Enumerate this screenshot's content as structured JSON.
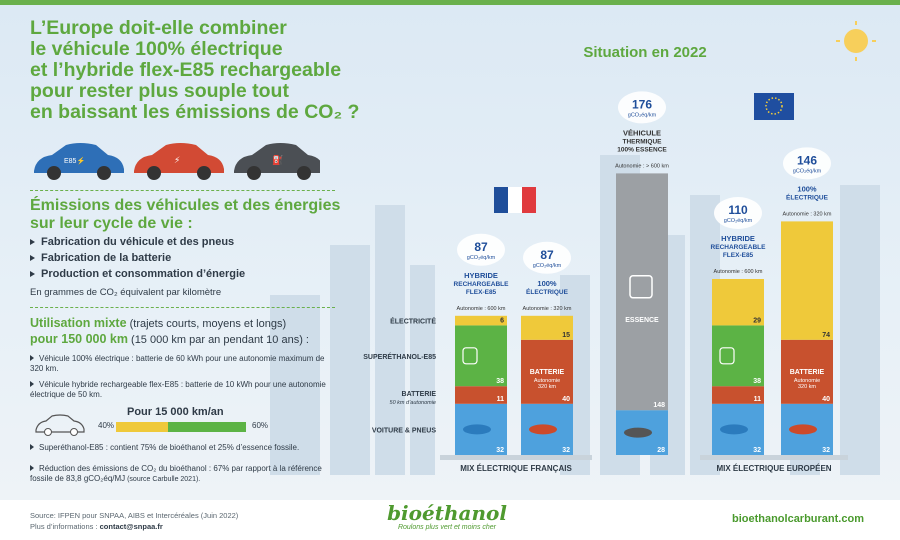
{
  "title_lines": [
    "L’Europe doit-elle combiner",
    "le véhicule 100% électrique",
    "et l’hybride flex-E85 rechargeable",
    "pour rester plus souple tout",
    "en baissant les émissions de CO₂ ?"
  ],
  "car_badges": [
    "E85⚡",
    "⚡",
    "⛽"
  ],
  "section1": {
    "title_lines": [
      "Émissions des véhicules et des énergies",
      "sur leur cycle de vie :"
    ],
    "bullets": [
      "Fabrication du véhicule et des pneus",
      "Fabrication de la batterie",
      "Production et consommation d’énergie"
    ],
    "unit_note": "En grammes de CO₂ équivalent par kilomètre"
  },
  "section2": {
    "title_main": "Utilisation mixte",
    "title_paren1": " (trajets courts, moyens et longs)",
    "title_main2": "pour 150 000 km",
    "title_paren2": " (15 000 km par an pendant 10 ans) :",
    "notes": [
      "Véhicule 100% électrique : batterie de 60 kWh pour une autonomie maximum de 320 km.",
      "Véhicule hybride rechargeable flex-E85 : batterie de 10 kWh pour une autonomie électrique de 50 km."
    ],
    "km_title": "Pour 15 000 km/an",
    "km_left": "40%",
    "km_right": "60%",
    "km_split": [
      40,
      60
    ],
    "notes2": [
      "Superéthanol-E85 : contient 75% de bioéthanol et 25% d’essence fossile.",
      "Réduction des émissions de CO₂ du bioéthanol : 67% par rapport à la référence fossile de 83,8 gCO₂éq/MJ"
    ],
    "notes2_source": " (source Carbulle 2021)."
  },
  "chart_data": {
    "type": "bar",
    "stacked": true,
    "title": "Situation en 2022",
    "unit": "gCO₂éq/km",
    "components": [
      "VOITURE & PNEUS",
      "BATTERIE",
      "SUPERÉTHANOL-E85",
      "ÉLECTRICITÉ"
    ],
    "component_labels": {
      "electricite": "ÉLECTRICITÉ",
      "superethanol": "SUPERÉTHANOL-E85",
      "batterie": "BATTERIE",
      "batterie_sub": "50 km d’autonomie",
      "voiture": "VOITURE & PNEUS"
    },
    "groups": [
      {
        "label": "MIX ÉLECTRIQUE FRANÇAIS",
        "flag": "France"
      },
      {
        "label": "MIX ÉLECTRIQUE EUROPÉEN",
        "flag": "EU"
      }
    ],
    "bars": [
      {
        "group": 0,
        "total": "87",
        "name_lines": [
          "HYBRIDE",
          "RECHARGEABLE",
          "FLEX-E85"
        ],
        "sub": "Autonomie : 600 km",
        "values": {
          "voiture": 32,
          "batterie": 11,
          "superethanol": 38,
          "electricite": 6
        },
        "color": "#2b7bbd"
      },
      {
        "group": 0,
        "total": "87",
        "name_lines": [
          "100%",
          "ÉLECTRIQUE"
        ],
        "sub": "Autonomie : 320 km",
        "values": {
          "voiture": 32,
          "batterie": 40,
          "electricite": 15
        },
        "color": "#cc4a2a"
      },
      {
        "group": -1,
        "total": "176",
        "name_lines": [
          "VÉHICULE",
          "THERMIQUE",
          "100% ESSENCE"
        ],
        "sub": "Autonomie : > 600 km",
        "values": {
          "voiture": 28,
          "essence": 148
        },
        "essence_label": "ESSENCE",
        "color": "#555"
      },
      {
        "group": 1,
        "total": "110",
        "name_lines": [
          "HYBRIDE",
          "RECHARGEABLE",
          "FLEX-E85"
        ],
        "sub": "Autonomie : 600 km",
        "values": {
          "voiture": 32,
          "batterie": 11,
          "superethanol": 38,
          "electricite": 29
        },
        "color": "#2b7bbd"
      },
      {
        "group": 1,
        "total": "146",
        "name_lines": [
          "100%",
          "ÉLECTRIQUE"
        ],
        "sub": "Autonomie : 320 km",
        "values": {
          "voiture": 32,
          "batterie": 40,
          "electricite": 74
        },
        "color": "#cc4a2a"
      }
    ],
    "segment_inner_labels": {
      "batterie": "BATTERIE",
      "batterie_sub1": "Autonomie",
      "batterie_sub2": "320 km"
    },
    "colors": {
      "voiture": "#4ea1dd",
      "batterie": "#c8512e",
      "superethanol": "#5cb345",
      "electricite": "#efc93a",
      "essence": "#9ca0a4"
    }
  },
  "footer": {
    "source_line1": "Source: IFPEN pour SNPAA, AIBS et Intercéréales (Juin 2022)",
    "source_line2_label": "Plus d’informations : ",
    "source_line2_value": "contact@snpaa.fr",
    "brand": "bioéthanol",
    "brand_tagline": "Roulons plus vert et moins cher",
    "website": "bioethanolcarburant.com"
  }
}
